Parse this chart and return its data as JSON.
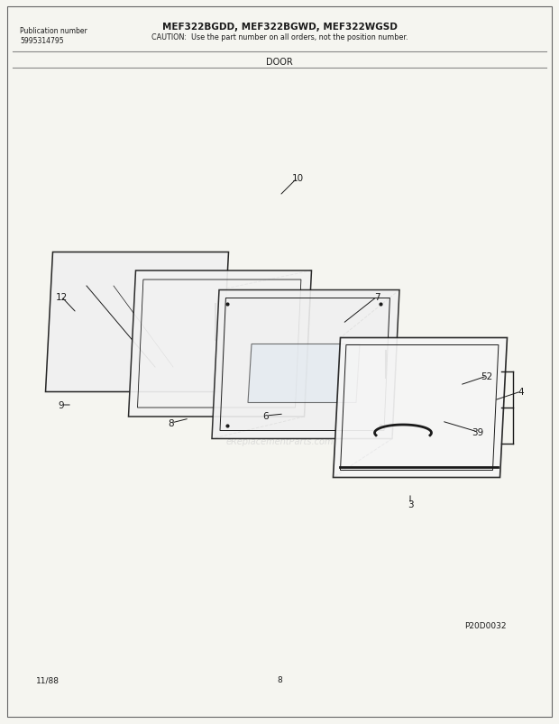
{
  "title_model": "MEF322BGDD, MEF322BGWD, MEF322WGSD",
  "title_caution": "CAUTION:  Use the part number on all orders, not the position number.",
  "pub_label": "Publication number",
  "pub_number": "5995314795",
  "section_title": "DOOR",
  "diagram_code": "P20D0032",
  "date_code": "11/88",
  "page_number": "8",
  "bg_color": "#f5f5f0",
  "line_color": "#1a1a1a",
  "watermark": "eReplacementParts.com"
}
